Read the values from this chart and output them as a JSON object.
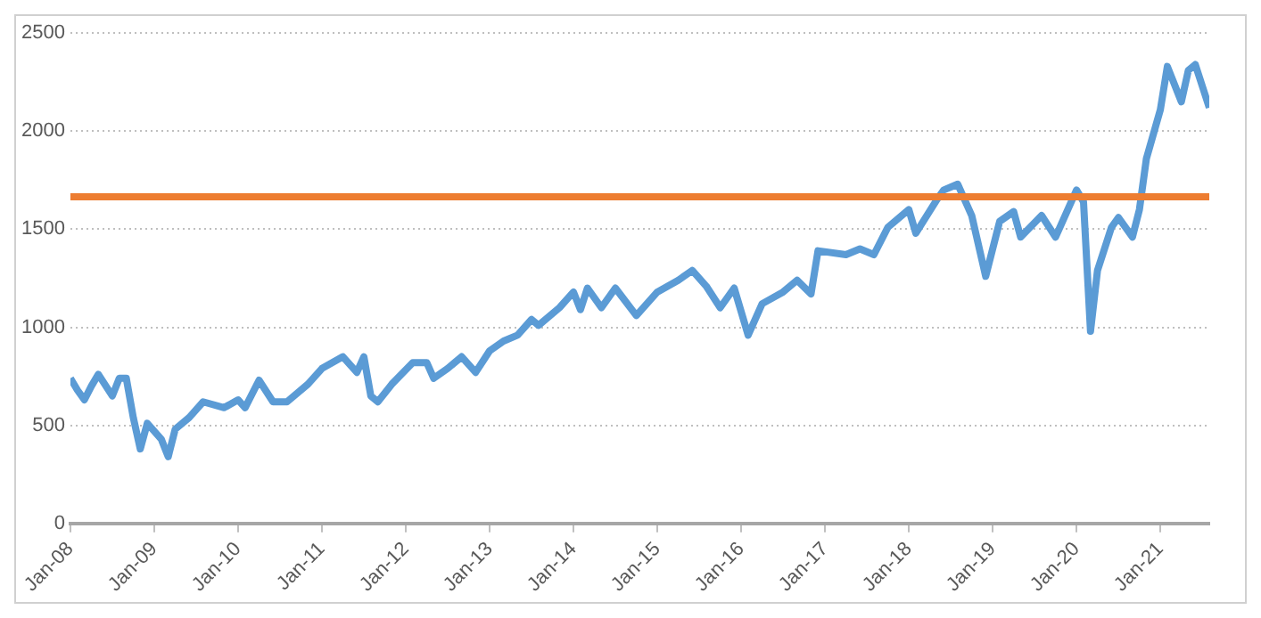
{
  "chart_data": {
    "type": "line",
    "x": [
      "2008-01",
      "2008-02",
      "2008-03",
      "2008-04",
      "2008-05",
      "2008-07",
      "2008-08",
      "2008-09",
      "2008-10",
      "2008-11",
      "2008-12",
      "2009-02",
      "2009-03",
      "2009-04",
      "2009-06",
      "2009-08",
      "2009-11",
      "2010-01",
      "2010-02",
      "2010-04",
      "2010-06",
      "2010-08",
      "2010-11",
      "2011-01",
      "2011-04",
      "2011-06",
      "2011-07",
      "2011-08",
      "2011-09",
      "2011-11",
      "2012-02",
      "2012-04",
      "2012-05",
      "2012-07",
      "2012-09",
      "2012-11",
      "2013-01",
      "2013-03",
      "2013-05",
      "2013-07",
      "2013-08",
      "2013-11",
      "2014-01",
      "2014-02",
      "2014-03",
      "2014-05",
      "2014-07",
      "2014-10",
      "2015-01",
      "2015-04",
      "2015-06",
      "2015-08",
      "2015-10",
      "2015-12",
      "2016-02",
      "2016-04",
      "2016-07",
      "2016-09",
      "2016-11",
      "2016-12",
      "2017-04",
      "2017-06",
      "2017-08",
      "2017-10",
      "2018-01",
      "2018-02",
      "2018-05",
      "2018-06",
      "2018-08",
      "2018-10",
      "2018-12",
      "2019-02",
      "2019-04",
      "2019-05",
      "2019-08",
      "2019-10",
      "2020-01",
      "2020-02",
      "2020-03",
      "2020-04",
      "2020-06",
      "2020-07",
      "2020-09",
      "2020-10",
      "2020-11",
      "2021-01",
      "2021-02",
      "2021-04",
      "2021-05",
      "2021-06",
      "2021-08"
    ],
    "series": [
      {
        "color": "#5b9bd5",
        "values": [
          740,
          680,
          630,
          700,
          760,
          650,
          740,
          740,
          540,
          380,
          510,
          430,
          340,
          480,
          540,
          620,
          590,
          630,
          590,
          730,
          620,
          620,
          710,
          790,
          850,
          770,
          850,
          650,
          620,
          710,
          820,
          820,
          740,
          790,
          850,
          770,
          880,
          930,
          960,
          1040,
          1010,
          1100,
          1180,
          1090,
          1200,
          1100,
          1200,
          1060,
          1180,
          1240,
          1290,
          1210,
          1100,
          1200,
          960,
          1120,
          1180,
          1240,
          1170,
          1390,
          1370,
          1400,
          1370,
          1510,
          1600,
          1480,
          1650,
          1700,
          1730,
          1570,
          1260,
          1540,
          1590,
          1460,
          1570,
          1460,
          1700,
          1640,
          980,
          1290,
          1510,
          1560,
          1460,
          1600,
          1860,
          2110,
          2330,
          2150,
          2310,
          2340,
          2120
        ]
      }
    ],
    "xlim": [
      "2008-01",
      "2021-08"
    ],
    "xticks": [
      {
        "value": "2008-01",
        "label": "Jan-08"
      },
      {
        "value": "2009-01",
        "label": "Jan-09"
      },
      {
        "value": "2010-01",
        "label": "Jan-10"
      },
      {
        "value": "2011-01",
        "label": "Jan-11"
      },
      {
        "value": "2012-01",
        "label": "Jan-12"
      },
      {
        "value": "2013-01",
        "label": "Jan-13"
      },
      {
        "value": "2014-01",
        "label": "Jan-14"
      },
      {
        "value": "2015-01",
        "label": "Jan-15"
      },
      {
        "value": "2016-01",
        "label": "Jan-16"
      },
      {
        "value": "2017-01",
        "label": "Jan-17"
      },
      {
        "value": "2018-01",
        "label": "Jan-18"
      },
      {
        "value": "2019-01",
        "label": "Jan-19"
      },
      {
        "value": "2020-01",
        "label": "Jan-20"
      },
      {
        "value": "2021-01",
        "label": "Jan-21"
      }
    ],
    "ylim": [
      0,
      2500
    ],
    "yticks": [
      0,
      500,
      1000,
      1500,
      2000,
      2500
    ],
    "ref_lines": [
      {
        "axis": "y",
        "value": 1665,
        "color": "#ed7d31"
      }
    ],
    "grid": "y"
  }
}
